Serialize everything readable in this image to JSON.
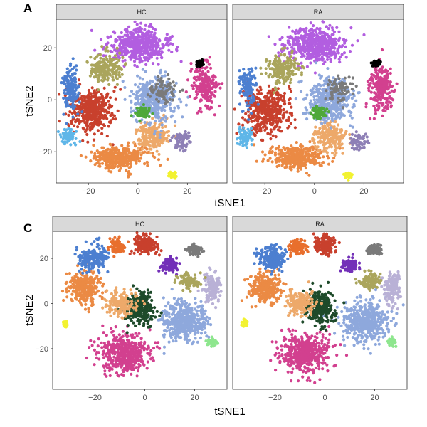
{
  "figure": {
    "panels": [
      {
        "id": "A",
        "label": "A"
      },
      {
        "id": "C",
        "label": "C"
      }
    ]
  },
  "chart_data": [
    {
      "type": "scatter",
      "panel_label": "A",
      "facets": [
        "HC",
        "RA"
      ],
      "xlabel": "tSNE1",
      "ylabel": "tSNE2",
      "xlim": [
        -33,
        36
      ],
      "ylim": [
        -32,
        31
      ],
      "xticks": [
        -20,
        0,
        20
      ],
      "xtick_labels": [
        "−20",
        "0",
        "20"
      ],
      "yticks": [
        -20,
        0,
        20
      ],
      "ytick_labels": [
        "−20",
        "0",
        "20"
      ],
      "grid": false,
      "legend": "none",
      "clusters": [
        {
          "color": "#b25ee0",
          "cx": 0,
          "cy": 21,
          "sx": 11,
          "sy": 6,
          "n": 520
        },
        {
          "color": "#d2408f",
          "cx": 27,
          "cy": 5,
          "sx": 4.5,
          "sy": 8,
          "n": 210
        },
        {
          "color": "#c8402d",
          "cx": -19,
          "cy": -4,
          "sx": 8,
          "sy": 8,
          "n": 420
        },
        {
          "color": "#eb8a44",
          "cx": -7,
          "cy": -22,
          "sx": 10,
          "sy": 4,
          "n": 360
        },
        {
          "color": "#eda96a",
          "cx": 6,
          "cy": -14,
          "sx": 6,
          "sy": 5,
          "n": 200
        },
        {
          "color": "#8ea8dc",
          "cx": 6,
          "cy": 0,
          "sx": 8,
          "sy": 8,
          "n": 420
        },
        {
          "color": "#aaa55c",
          "cx": -13,
          "cy": 12,
          "sx": 6,
          "sy": 5,
          "n": 200
        },
        {
          "color": "#4c7fd0",
          "cx": -27,
          "cy": 4,
          "sx": 3,
          "sy": 7,
          "n": 140
        },
        {
          "color": "#5fb6e8",
          "cx": -28,
          "cy": -14,
          "sx": 3,
          "sy": 3,
          "n": 70
        },
        {
          "color": "#4fa83a",
          "cx": 2,
          "cy": -5,
          "sx": 3,
          "sy": 2,
          "n": 70
        },
        {
          "color": "#8e80b6",
          "cx": 18,
          "cy": -16,
          "sx": 3,
          "sy": 3,
          "n": 70
        },
        {
          "color": "#7a7a7a",
          "cx": 10,
          "cy": 4,
          "sx": 5,
          "sy": 5,
          "n": 80
        },
        {
          "color": "#000000",
          "cx": 25,
          "cy": 14,
          "sx": 1.2,
          "sy": 1,
          "n": 60
        },
        {
          "color": "#f2f230",
          "cx": 14,
          "cy": -29,
          "sx": 1.5,
          "sy": 1,
          "n": 30
        }
      ]
    },
    {
      "type": "scatter",
      "panel_label": "C",
      "facets": [
        "HC",
        "RA"
      ],
      "xlabel": "tSNE1",
      "ylabel": "tSNE2",
      "xlim": [
        -37,
        33
      ],
      "ylim": [
        -38,
        32
      ],
      "xticks": [
        -20,
        0,
        20
      ],
      "xtick_labels": [
        "−20",
        "0",
        "20"
      ],
      "yticks": [
        -20,
        0,
        20
      ],
      "ytick_labels": [
        "−20",
        "0",
        "20"
      ],
      "grid": false,
      "legend": "none",
      "clusters": [
        {
          "color": "#d2408f",
          "cx": -8,
          "cy": -22,
          "sx": 9,
          "sy": 8,
          "n": 460
        },
        {
          "color": "#8ea8dc",
          "cx": 16,
          "cy": -8,
          "sx": 8,
          "sy": 8,
          "n": 460
        },
        {
          "color": "#eb8a44",
          "cx": -24,
          "cy": 7,
          "sx": 6,
          "sy": 6,
          "n": 280
        },
        {
          "color": "#4c7fd0",
          "cx": -21,
          "cy": 20,
          "sx": 5,
          "sy": 5,
          "n": 200
        },
        {
          "color": "#1e4a2a",
          "cx": -2,
          "cy": -2,
          "sx": 5,
          "sy": 7,
          "n": 260
        },
        {
          "color": "#c8402d",
          "cx": 0,
          "cy": 26,
          "sx": 4,
          "sy": 4,
          "n": 160
        },
        {
          "color": "#eda96a",
          "cx": -10,
          "cy": 0,
          "sx": 5,
          "sy": 5,
          "n": 170
        },
        {
          "color": "#b9b1d6",
          "cx": 27,
          "cy": 7,
          "sx": 3,
          "sy": 6,
          "n": 160
        },
        {
          "color": "#7a7a7a",
          "cx": 20,
          "cy": 24,
          "sx": 3,
          "sy": 2,
          "n": 90
        },
        {
          "color": "#7330b8",
          "cx": 10,
          "cy": 17,
          "sx": 3,
          "sy": 3,
          "n": 100
        },
        {
          "color": "#aaa55c",
          "cx": 18,
          "cy": 10,
          "sx": 4,
          "sy": 3,
          "n": 100
        },
        {
          "color": "#e86f2d",
          "cx": -11,
          "cy": 25,
          "sx": 3,
          "sy": 3,
          "n": 110
        },
        {
          "color": "#f2f230",
          "cx": -32,
          "cy": -9,
          "sx": 1,
          "sy": 1.5,
          "n": 25
        },
        {
          "color": "#8ee68e",
          "cx": 27,
          "cy": -17,
          "sx": 2,
          "sy": 2,
          "n": 30
        }
      ]
    }
  ]
}
